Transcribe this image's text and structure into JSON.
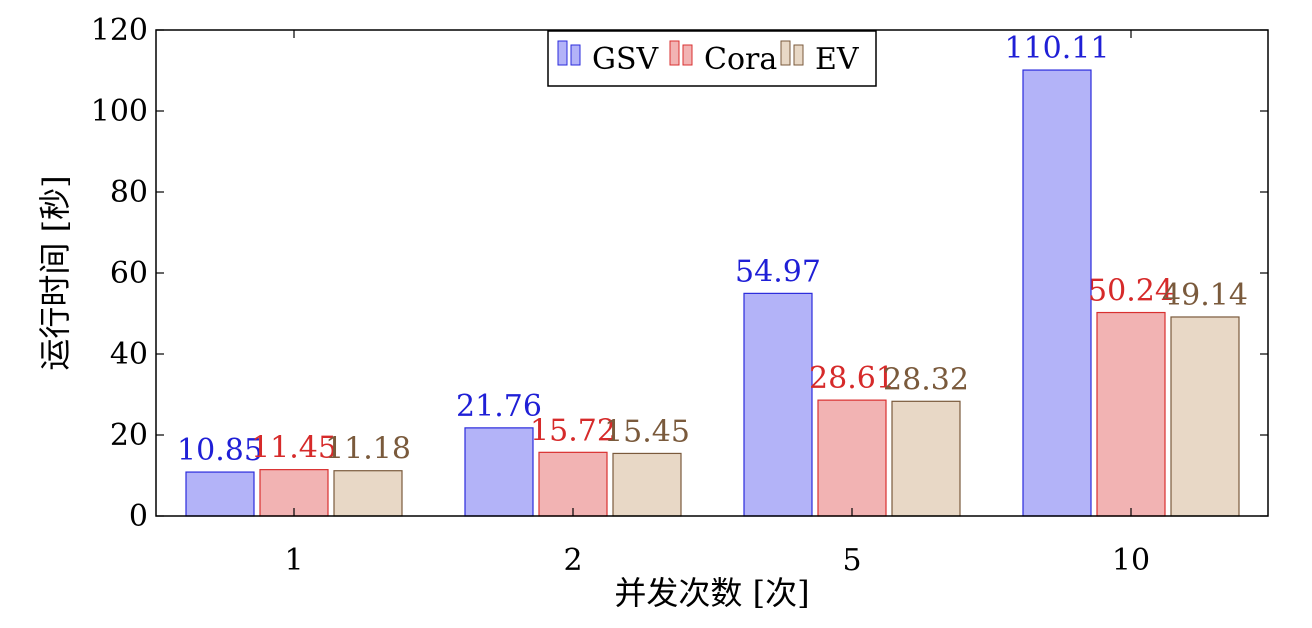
{
  "chart_data": {
    "type": "bar",
    "title": "",
    "xlabel": "并发次数 [次]",
    "ylabel": "运行时间 [秒]",
    "categories": [
      "1",
      "2",
      "5",
      "10"
    ],
    "ylim": [
      0,
      120
    ],
    "yticks": [
      0,
      20,
      40,
      60,
      80,
      100,
      120
    ],
    "grid": false,
    "legend_position": "top-center",
    "series": [
      {
        "name": "GSV",
        "values": [
          10.85,
          21.76,
          54.97,
          110.11
        ],
        "labels": [
          "10.85",
          "21.76",
          "54.97",
          "110.11"
        ],
        "fill": "#b3b3f8",
        "stroke": "#2b2bdc",
        "label_color": "#1f1fd6"
      },
      {
        "name": "Cora",
        "values": [
          11.45,
          15.72,
          28.61,
          50.24
        ],
        "labels": [
          "11.45",
          "15.72",
          "28.61",
          "50.24"
        ],
        "fill": "#f2b3b3",
        "stroke": "#d93030",
        "label_color": "#d62a2a"
      },
      {
        "name": "EV",
        "values": [
          11.18,
          15.45,
          28.32,
          49.14
        ],
        "labels": [
          "11.18",
          "15.45",
          "28.32",
          "49.14"
        ],
        "fill": "#e8d8c6",
        "stroke": "#7a5a3c",
        "label_color": "#7a5a3c"
      }
    ]
  }
}
